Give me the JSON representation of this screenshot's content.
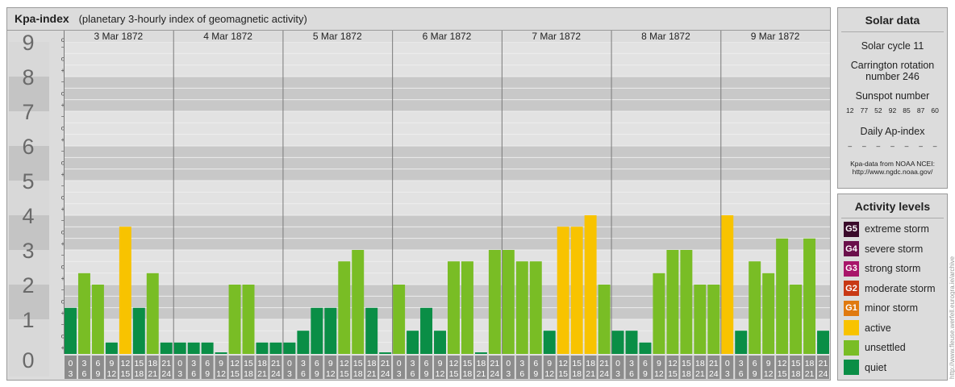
{
  "header": {
    "title": "Kpa-index",
    "subtitle": "(planetary 3-hourly index of geomagnetic activity)"
  },
  "chart_data": {
    "type": "bar",
    "title": "Kpa-index",
    "subtitle": "(planetary 3-hourly index of geomagnetic activity)",
    "ylim": [
      0,
      9
    ],
    "y_tick_labels": [
      "0",
      "1",
      "2",
      "3",
      "4",
      "5",
      "6",
      "7",
      "8",
      "9"
    ],
    "y_minor_labels": [
      "+",
      "o",
      "−"
    ],
    "days": [
      "3 Mar 1872",
      "4 Mar 1872",
      "5 Mar 1872",
      "6 Mar 1872",
      "7 Mar 1872",
      "8 Mar 1872",
      "9 Mar 1872"
    ],
    "hour_start_labels": [
      "0",
      "3",
      "6",
      "9",
      "12",
      "15",
      "18",
      "21"
    ],
    "hour_end_labels": [
      "3",
      "6",
      "9",
      "12",
      "15",
      "18",
      "21",
      "24"
    ],
    "values": [
      [
        1.33,
        2.33,
        2.0,
        0.33,
        3.67,
        1.33,
        2.33,
        0.33
      ],
      [
        0.33,
        0.33,
        0.33,
        0.0,
        2.0,
        2.0,
        0.33,
        0.33
      ],
      [
        0.33,
        0.67,
        1.33,
        1.33,
        2.67,
        3.0,
        1.33,
        0.0
      ],
      [
        2.0,
        0.67,
        1.33,
        0.67,
        2.67,
        2.67,
        0.0,
        3.0
      ],
      [
        3.0,
        2.67,
        2.67,
        0.67,
        3.67,
        3.67,
        4.0,
        2.0
      ],
      [
        0.67,
        0.67,
        0.33,
        2.33,
        3.0,
        3.0,
        2.0,
        2.0
      ],
      [
        4.0,
        0.67,
        2.67,
        2.33,
        3.33,
        2.0,
        3.33,
        0.67
      ]
    ],
    "level_colors": {
      "quiet": "#0a8e46",
      "unsettled": "#79bd25",
      "active": "#f8c300",
      "minor": "#e07a10",
      "moderate": "#c83814",
      "strong": "#a8156a",
      "severe": "#6a0f4a",
      "extreme": "#3a0a2a"
    },
    "grid": true
  },
  "solar": {
    "title": "Solar data",
    "cycle": "Solar cycle 11",
    "carrington": "Carrington rotation number 246",
    "sunspot_label": "Sunspot number",
    "sunspots": [
      "12",
      "77",
      "52",
      "92",
      "85",
      "87",
      "60"
    ],
    "ap_label": "Daily Ap-index",
    "ap_values": [
      "–",
      "–",
      "–",
      "–",
      "–",
      "–",
      "–"
    ],
    "credit_line1": "Kpa-data from NOAA NCEI:",
    "credit_line2": "http://www.ngdc.noaa.gov/"
  },
  "levels": {
    "title": "Activity levels",
    "items": [
      {
        "code": "G5",
        "label": "extreme storm",
        "color": "#3a0a2a"
      },
      {
        "code": "G4",
        "label": "severe storm",
        "color": "#6a0f4a"
      },
      {
        "code": "G3",
        "label": "strong storm",
        "color": "#a8156a"
      },
      {
        "code": "G2",
        "label": "moderate storm",
        "color": "#c83814"
      },
      {
        "code": "G1",
        "label": "minor storm",
        "color": "#e07a10"
      },
      {
        "code": "",
        "label": "active",
        "color": "#f8c300"
      },
      {
        "code": "",
        "label": "unsettled",
        "color": "#79bd25"
      },
      {
        "code": "",
        "label": "quiet",
        "color": "#0a8e46"
      }
    ]
  },
  "side_credit": "http://www.fleuse.werfell.eurogra.ie/archive"
}
